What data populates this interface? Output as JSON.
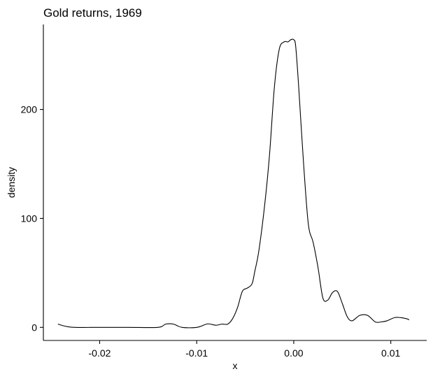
{
  "chart_data": {
    "type": "line",
    "title": "Gold returns, 1969",
    "xlabel": "x",
    "ylabel": "density",
    "xlim": [
      -0.0258,
      0.0137
    ],
    "ylim": [
      -12,
      278
    ],
    "x_ticks": [
      -0.02,
      -0.01,
      0.0,
      0.01
    ],
    "x_tick_labels": [
      "-0.02",
      "-0.01",
      "0.00",
      "0.01"
    ],
    "y_ticks": [
      0,
      100,
      200
    ],
    "y_tick_labels": [
      "0",
      "100",
      "200"
    ],
    "grid": false,
    "legend": "none",
    "series": [
      {
        "x": [
          -0.0243,
          -0.0235,
          -0.0225,
          -0.02,
          -0.017,
          -0.014,
          -0.0132,
          -0.0124,
          -0.0115,
          -0.01,
          -0.009,
          -0.0086,
          -0.008,
          -0.0074,
          -0.0068,
          -0.0063,
          -0.0058,
          -0.0053,
          -0.0048,
          -0.0043,
          -0.004,
          -0.0036,
          -0.003,
          -0.0025,
          -0.002,
          -0.0015,
          -0.001,
          -0.0006,
          -0.0003,
          0.0,
          0.0002,
          0.0005,
          0.001,
          0.0015,
          0.002,
          0.0025,
          0.003,
          0.0035,
          0.004,
          0.0045,
          0.005,
          0.0055,
          0.006,
          0.0068,
          0.0076,
          0.0084,
          0.009,
          0.0096,
          0.0104,
          0.011,
          0.0116,
          0.0119
        ],
        "y": [
          3,
          1,
          0,
          0,
          0,
          0,
          3,
          3,
          0,
          0,
          3,
          3,
          2,
          3,
          3,
          8,
          18,
          33,
          36,
          40,
          52,
          70,
          112,
          158,
          220,
          255,
          262,
          262,
          264,
          264,
          258,
          222,
          152,
          95,
          78,
          55,
          27,
          25,
          32,
          33,
          22,
          10,
          6,
          11,
          11,
          5,
          5,
          6,
          9,
          9,
          8,
          7
        ],
        "color": "#000000"
      }
    ]
  }
}
